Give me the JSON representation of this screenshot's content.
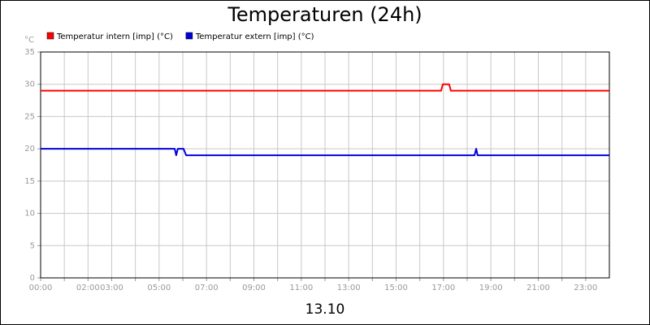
{
  "chart_data": {
    "type": "line",
    "title": "Temperaturen (24h)",
    "subtitle": "13.10",
    "ylabel": "°C",
    "xlim": [
      0,
      24
    ],
    "ylim": [
      0,
      35
    ],
    "yticks": [
      0,
      5,
      10,
      15,
      20,
      25,
      30,
      35
    ],
    "xticks": [
      {
        "value": 0,
        "label": "00:00"
      },
      {
        "value": 2,
        "label": "02:00"
      },
      {
        "value": 3,
        "label": "03:00"
      },
      {
        "value": 5,
        "label": "05:00"
      },
      {
        "value": 7,
        "label": "07:00"
      },
      {
        "value": 9,
        "label": "09:00"
      },
      {
        "value": 11,
        "label": "11:00"
      },
      {
        "value": 13,
        "label": "13:00"
      },
      {
        "value": 15,
        "label": "15:00"
      },
      {
        "value": 17,
        "label": "17:00"
      },
      {
        "value": 19,
        "label": "19:00"
      },
      {
        "value": 21,
        "label": "21:00"
      },
      {
        "value": 23,
        "label": "23:00"
      }
    ],
    "minor_xticks": [
      1,
      4,
      6,
      8,
      10,
      12,
      14,
      16,
      18,
      20,
      22
    ],
    "grid": true,
    "series": [
      {
        "name": "Temperatur intern [imp] (°C)",
        "color": "#ff0000",
        "x": [
          0,
          16.9,
          16.97,
          17.24,
          17.31,
          24
        ],
        "values": [
          29,
          29,
          30,
          30,
          29,
          29
        ]
      },
      {
        "name": "Temperatur extern [imp] (°C)",
        "color": "#0000dd",
        "x": [
          0,
          5.66,
          5.72,
          5.79,
          6.03,
          6.14,
          18.31,
          18.38,
          18.44,
          24
        ],
        "values": [
          20,
          20,
          19,
          20,
          20,
          19,
          19,
          20,
          19,
          19
        ]
      }
    ]
  }
}
